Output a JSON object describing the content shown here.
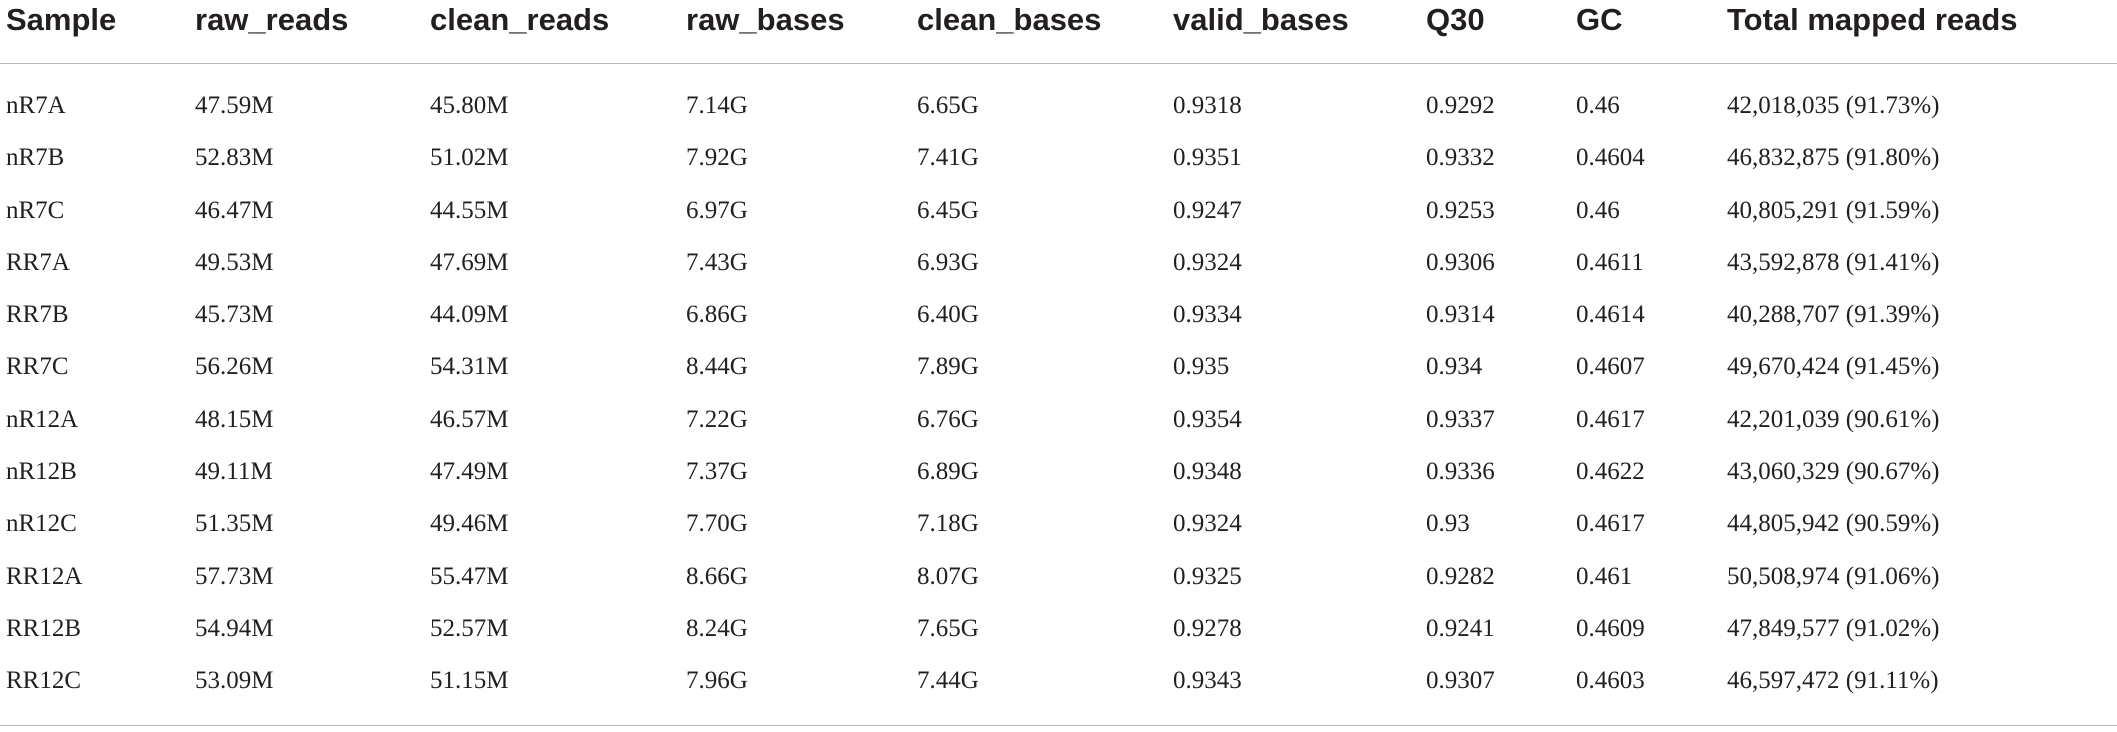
{
  "table": {
    "headers": [
      "Sample",
      "raw_reads",
      "clean_reads",
      "raw_bases",
      "clean_bases",
      "valid_bases",
      "Q30",
      "GC",
      "Total mapped reads"
    ],
    "rows": [
      [
        "nR7A",
        "47.59M",
        "45.80M",
        "7.14G",
        "6.65G",
        "0.9318",
        "0.9292",
        "0.46",
        "42,018,035 (91.73%)"
      ],
      [
        "nR7B",
        "52.83M",
        "51.02M",
        "7.92G",
        "7.41G",
        "0.9351",
        "0.9332",
        "0.4604",
        "46,832,875 (91.80%)"
      ],
      [
        "nR7C",
        "46.47M",
        "44.55M",
        "6.97G",
        "6.45G",
        "0.9247",
        "0.9253",
        "0.46",
        "40,805,291 (91.59%)"
      ],
      [
        "RR7A",
        "49.53M",
        "47.69M",
        "7.43G",
        "6.93G",
        "0.9324",
        "0.9306",
        "0.4611",
        "43,592,878 (91.41%)"
      ],
      [
        "RR7B",
        "45.73M",
        "44.09M",
        "6.86G",
        "6.40G",
        "0.9334",
        "0.9314",
        "0.4614",
        "40,288,707 (91.39%)"
      ],
      [
        "RR7C",
        "56.26M",
        "54.31M",
        "8.44G",
        "7.89G",
        "0.935",
        "0.934",
        "0.4607",
        "49,670,424 (91.45%)"
      ],
      [
        "nR12A",
        "48.15M",
        "46.57M",
        "7.22G",
        "6.76G",
        "0.9354",
        "0.9337",
        "0.4617",
        "42,201,039 (90.61%)"
      ],
      [
        "nR12B",
        "49.11M",
        "47.49M",
        "7.37G",
        "6.89G",
        "0.9348",
        "0.9336",
        "0.4622",
        "43,060,329 (90.67%)"
      ],
      [
        "nR12C",
        "51.35M",
        "49.46M",
        "7.70G",
        "7.18G",
        "0.9324",
        "0.93",
        "0.4617",
        "44,805,942 (90.59%)"
      ],
      [
        "RR12A",
        "57.73M",
        "55.47M",
        "8.66G",
        "8.07G",
        "0.9325",
        "0.9282",
        "0.461",
        "50,508,974 (91.06%)"
      ],
      [
        "RR12B",
        "54.94M",
        "52.57M",
        "8.24G",
        "7.65G",
        "0.9278",
        "0.9241",
        "0.4609",
        "47,849,577 (91.02%)"
      ],
      [
        "RR12C",
        "53.09M",
        "51.15M",
        "7.96G",
        "7.44G",
        "0.9343",
        "0.9307",
        "0.4603",
        "46,597,472 (91.11%)"
      ]
    ]
  }
}
